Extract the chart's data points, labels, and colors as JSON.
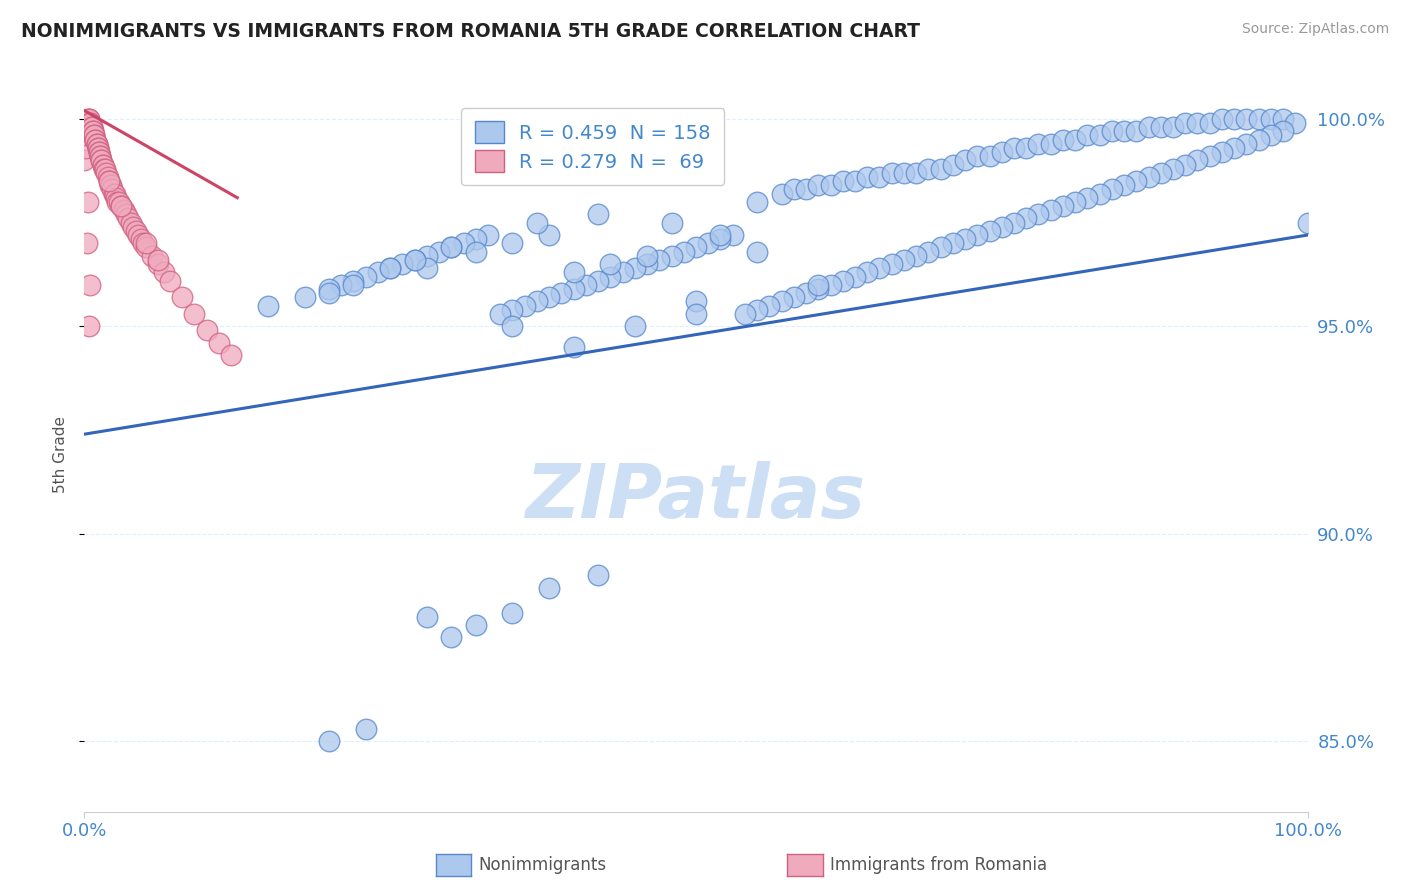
{
  "title": "NONIMMIGRANTS VS IMMIGRANTS FROM ROMANIA 5TH GRADE CORRELATION CHART",
  "source_text": "Source: ZipAtlas.com",
  "ylabel": "5th Grade",
  "blue_color": "#adc8ed",
  "pink_color": "#f0aabe",
  "blue_edge_color": "#5588cc",
  "pink_edge_color": "#d06080",
  "blue_line_color": "#3366bb",
  "pink_line_color": "#cc4466",
  "watermark_color": "#ccdff5",
  "title_color": "#222222",
  "axis_label_color": "#4488cc",
  "grid_color": "#ddeeff",
  "background_color": "#ffffff",
  "xlim": [
    0.0,
    1.0
  ],
  "ylim": [
    0.833,
    1.005
  ],
  "yticks": [
    0.85,
    0.9,
    0.95,
    1.0
  ],
  "ytick_labels": [
    "85.0%",
    "90.0%",
    "95.0%",
    "100.0%"
  ],
  "xtick_labels": [
    "0.0%",
    "100.0%"
  ],
  "blue_line_x": [
    0.0,
    1.0
  ],
  "blue_line_y": [
    0.924,
    0.972
  ],
  "pink_line_x": [
    0.0,
    0.125
  ],
  "pink_line_y": [
    1.002,
    0.981
  ],
  "legend_labels": [
    "R = 0.459  N = 158",
    "R = 0.279  N =  69"
  ],
  "bottom_legend_labels": [
    "Nonimmigrants",
    "Immigrants from Romania"
  ],
  "blue_x": [
    0.55,
    0.57,
    0.58,
    0.59,
    0.6,
    0.61,
    0.62,
    0.63,
    0.64,
    0.65,
    0.66,
    0.67,
    0.68,
    0.69,
    0.7,
    0.71,
    0.72,
    0.73,
    0.74,
    0.75,
    0.76,
    0.77,
    0.78,
    0.79,
    0.8,
    0.81,
    0.82,
    0.83,
    0.84,
    0.85,
    0.86,
    0.87,
    0.88,
    0.89,
    0.9,
    0.91,
    0.92,
    0.93,
    0.94,
    0.95,
    0.96,
    0.97,
    0.98,
    0.99,
    1.0,
    0.98,
    0.97,
    0.96,
    0.95,
    0.94,
    0.93,
    0.92,
    0.91,
    0.9,
    0.89,
    0.88,
    0.87,
    0.86,
    0.85,
    0.84,
    0.83,
    0.82,
    0.81,
    0.8,
    0.79,
    0.78,
    0.77,
    0.76,
    0.75,
    0.74,
    0.73,
    0.72,
    0.71,
    0.7,
    0.69,
    0.68,
    0.67,
    0.66,
    0.65,
    0.64,
    0.63,
    0.62,
    0.61,
    0.6,
    0.59,
    0.58,
    0.57,
    0.56,
    0.55,
    0.54,
    0.53,
    0.52,
    0.51,
    0.5,
    0.49,
    0.48,
    0.47,
    0.46,
    0.45,
    0.44,
    0.43,
    0.42,
    0.41,
    0.4,
    0.39,
    0.38,
    0.37,
    0.36,
    0.35,
    0.34,
    0.33,
    0.32,
    0.31,
    0.3,
    0.29,
    0.28,
    0.27,
    0.26,
    0.25,
    0.24,
    0.23,
    0.22,
    0.21,
    0.2,
    0.32,
    0.35,
    0.38,
    0.28,
    0.4,
    0.43,
    0.46,
    0.5,
    0.37,
    0.42,
    0.48,
    0.52,
    0.55,
    0.6,
    0.15,
    0.18,
    0.2,
    0.22,
    0.25,
    0.27,
    0.3,
    0.35,
    0.4,
    0.45,
    0.5,
    0.28,
    0.3,
    0.32,
    0.35,
    0.38,
    0.42,
    0.2,
    0.23
  ],
  "blue_y": [
    0.98,
    0.982,
    0.983,
    0.983,
    0.984,
    0.984,
    0.985,
    0.985,
    0.986,
    0.986,
    0.987,
    0.987,
    0.987,
    0.988,
    0.988,
    0.989,
    0.99,
    0.991,
    0.991,
    0.992,
    0.993,
    0.993,
    0.994,
    0.994,
    0.995,
    0.995,
    0.996,
    0.996,
    0.997,
    0.997,
    0.997,
    0.998,
    0.998,
    0.998,
    0.999,
    0.999,
    0.999,
    1.0,
    1.0,
    1.0,
    1.0,
    1.0,
    1.0,
    0.999,
    0.975,
    0.997,
    0.996,
    0.995,
    0.994,
    0.993,
    0.992,
    0.991,
    0.99,
    0.989,
    0.988,
    0.987,
    0.986,
    0.985,
    0.984,
    0.983,
    0.982,
    0.981,
    0.98,
    0.979,
    0.978,
    0.977,
    0.976,
    0.975,
    0.974,
    0.973,
    0.972,
    0.971,
    0.97,
    0.969,
    0.968,
    0.967,
    0.966,
    0.965,
    0.964,
    0.963,
    0.962,
    0.961,
    0.96,
    0.959,
    0.958,
    0.957,
    0.956,
    0.955,
    0.954,
    0.953,
    0.972,
    0.971,
    0.97,
    0.969,
    0.968,
    0.967,
    0.966,
    0.965,
    0.964,
    0.963,
    0.962,
    0.961,
    0.96,
    0.959,
    0.958,
    0.957,
    0.956,
    0.955,
    0.954,
    0.953,
    0.972,
    0.971,
    0.97,
    0.969,
    0.968,
    0.967,
    0.966,
    0.965,
    0.964,
    0.963,
    0.962,
    0.961,
    0.96,
    0.959,
    0.968,
    0.97,
    0.972,
    0.964,
    0.963,
    0.965,
    0.967,
    0.956,
    0.975,
    0.977,
    0.975,
    0.972,
    0.968,
    0.96,
    0.955,
    0.957,
    0.958,
    0.96,
    0.964,
    0.966,
    0.969,
    0.95,
    0.945,
    0.95,
    0.953,
    0.88,
    0.875,
    0.878,
    0.881,
    0.887,
    0.89,
    0.85,
    0.853
  ],
  "pink_x": [
    0.0,
    0.001,
    0.001,
    0.002,
    0.002,
    0.003,
    0.003,
    0.004,
    0.004,
    0.005,
    0.005,
    0.006,
    0.006,
    0.007,
    0.007,
    0.008,
    0.008,
    0.009,
    0.009,
    0.01,
    0.01,
    0.011,
    0.011,
    0.012,
    0.012,
    0.013,
    0.013,
    0.014,
    0.014,
    0.015,
    0.015,
    0.016,
    0.017,
    0.018,
    0.019,
    0.02,
    0.021,
    0.022,
    0.023,
    0.024,
    0.025,
    0.026,
    0.027,
    0.028,
    0.03,
    0.032,
    0.034,
    0.036,
    0.038,
    0.04,
    0.042,
    0.044,
    0.046,
    0.048,
    0.05,
    0.055,
    0.06,
    0.065,
    0.07,
    0.08,
    0.09,
    0.1,
    0.11,
    0.12,
    0.02,
    0.03,
    0.05,
    0.06,
    0.003,
    0.005,
    0.002,
    0.004
  ],
  "pink_y": [
    0.99,
    0.993,
    0.996,
    0.997,
    0.998,
    0.999,
    1.0,
    1.0,
    1.0,
    0.999,
    0.999,
    0.998,
    0.998,
    0.997,
    0.997,
    0.996,
    0.996,
    0.995,
    0.995,
    0.994,
    0.994,
    0.993,
    0.993,
    0.992,
    0.992,
    0.991,
    0.991,
    0.99,
    0.99,
    0.989,
    0.989,
    0.988,
    0.988,
    0.987,
    0.986,
    0.985,
    0.984,
    0.984,
    0.983,
    0.982,
    0.982,
    0.981,
    0.98,
    0.98,
    0.979,
    0.978,
    0.977,
    0.976,
    0.975,
    0.974,
    0.973,
    0.972,
    0.971,
    0.97,
    0.969,
    0.967,
    0.965,
    0.963,
    0.961,
    0.957,
    0.953,
    0.949,
    0.946,
    0.943,
    0.985,
    0.979,
    0.97,
    0.966,
    0.98,
    0.96,
    0.97,
    0.95
  ]
}
